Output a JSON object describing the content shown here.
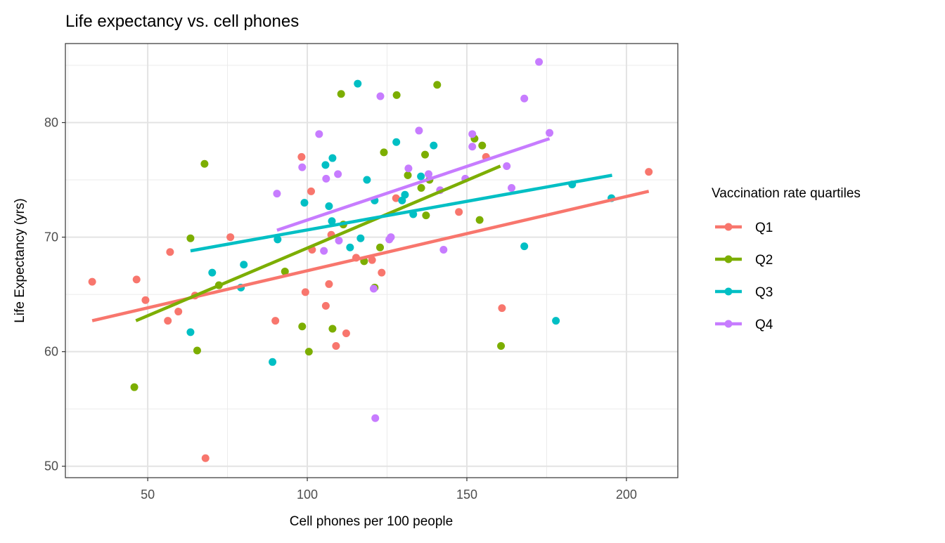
{
  "chart_data": {
    "type": "scatter",
    "title": "Life expectancy vs. cell phones",
    "xlabel": "Cell phones per 100 people",
    "ylabel": "Life Expectancy (yrs)",
    "xlim": [
      24.2,
      216.1
    ],
    "ylim": [
      49.0,
      86.9
    ],
    "xticks": [
      50,
      100,
      150,
      200
    ],
    "yticks": [
      50,
      60,
      70,
      80
    ],
    "xtick_labels": [
      "50",
      "100",
      "150",
      "200"
    ],
    "ytick_labels": [
      "50",
      "60",
      "70",
      "80"
    ],
    "grid": true,
    "legend": {
      "title": "Vaccination rate quartiles",
      "placement": "right"
    },
    "series": [
      {
        "name": "Q1",
        "color": "#F8766D",
        "points": [
          [
            32.6,
            66.1
          ],
          [
            46.5,
            66.3
          ],
          [
            49.3,
            64.5
          ],
          [
            56.3,
            62.7
          ],
          [
            59.6,
            63.5
          ],
          [
            57.0,
            68.7
          ],
          [
            64.8,
            64.9
          ],
          [
            75.9,
            70.0
          ],
          [
            68.1,
            50.7
          ],
          [
            90.0,
            62.7
          ],
          [
            98.2,
            77.0
          ],
          [
            99.4,
            65.2
          ],
          [
            101.2,
            74.0
          ],
          [
            101.5,
            68.9
          ],
          [
            105.8,
            64.0
          ],
          [
            106.8,
            65.9
          ],
          [
            107.5,
            70.2
          ],
          [
            109.0,
            60.5
          ],
          [
            112.2,
            61.6
          ],
          [
            115.3,
            68.2
          ],
          [
            120.3,
            68.0
          ],
          [
            123.3,
            66.9
          ],
          [
            127.8,
            73.4
          ],
          [
            147.5,
            72.2
          ],
          [
            156.0,
            77.0
          ],
          [
            161.0,
            63.8
          ],
          [
            207.0,
            75.7
          ]
        ],
        "fit": [
          [
            32.6,
            62.7
          ],
          [
            207.0,
            74.0
          ]
        ]
      },
      {
        "name": "Q2",
        "color": "#7CAE00",
        "points": [
          [
            45.8,
            56.9
          ],
          [
            67.8,
            76.4
          ],
          [
            63.4,
            69.9
          ],
          [
            65.5,
            60.1
          ],
          [
            72.3,
            65.8
          ],
          [
            93.0,
            67.0
          ],
          [
            98.4,
            62.2
          ],
          [
            100.5,
            60.0
          ],
          [
            107.9,
            62.0
          ],
          [
            110.6,
            82.5
          ],
          [
            111.3,
            71.1
          ],
          [
            117.8,
            67.9
          ],
          [
            121.1,
            65.6
          ],
          [
            122.8,
            69.1
          ],
          [
            124.0,
            77.4
          ],
          [
            128.0,
            82.4
          ],
          [
            131.5,
            75.4
          ],
          [
            135.7,
            74.3
          ],
          [
            136.9,
            77.2
          ],
          [
            137.2,
            71.9
          ],
          [
            138.3,
            75.0
          ],
          [
            140.7,
            83.3
          ],
          [
            152.4,
            78.6
          ],
          [
            154.8,
            78.0
          ],
          [
            154.0,
            71.5
          ],
          [
            160.7,
            60.5
          ]
        ],
        "fit": [
          [
            46.3,
            62.7
          ],
          [
            160.5,
            76.2
          ]
        ]
      },
      {
        "name": "Q3",
        "color": "#00BFC4",
        "points": [
          [
            63.4,
            61.7
          ],
          [
            70.2,
            66.9
          ],
          [
            79.2,
            65.6
          ],
          [
            80.1,
            67.6
          ],
          [
            89.1,
            59.1
          ],
          [
            90.7,
            69.8
          ],
          [
            99.1,
            73.0
          ],
          [
            105.7,
            76.3
          ],
          [
            106.8,
            72.7
          ],
          [
            107.9,
            76.9
          ],
          [
            107.7,
            71.4
          ],
          [
            113.4,
            69.1
          ],
          [
            115.8,
            83.4
          ],
          [
            116.7,
            69.9
          ],
          [
            118.7,
            75.0
          ],
          [
            121.1,
            73.2
          ],
          [
            127.9,
            78.3
          ],
          [
            129.7,
            73.2
          ],
          [
            130.6,
            73.7
          ],
          [
            133.2,
            72.0
          ],
          [
            135.6,
            75.3
          ],
          [
            139.6,
            78.0
          ],
          [
            168.0,
            69.2
          ],
          [
            177.9,
            62.7
          ],
          [
            183.0,
            74.6
          ],
          [
            195.3,
            73.4
          ]
        ],
        "fit": [
          [
            63.4,
            68.8
          ],
          [
            195.5,
            75.4
          ]
        ]
      },
      {
        "name": "Q4",
        "color": "#C77CFF",
        "points": [
          [
            90.5,
            73.8
          ],
          [
            98.4,
            76.1
          ],
          [
            103.7,
            79.0
          ],
          [
            105.2,
            68.8
          ],
          [
            105.9,
            75.1
          ],
          [
            109.6,
            75.5
          ],
          [
            109.9,
            69.7
          ],
          [
            121.3,
            54.2
          ],
          [
            122.9,
            82.3
          ],
          [
            125.7,
            69.8
          ],
          [
            126.2,
            70.0
          ],
          [
            131.7,
            76.0
          ],
          [
            135.0,
            79.3
          ],
          [
            138.0,
            75.5
          ],
          [
            141.6,
            74.1
          ],
          [
            142.7,
            68.9
          ],
          [
            149.5,
            75.1
          ],
          [
            151.7,
            79.0
          ],
          [
            151.7,
            77.9
          ],
          [
            162.5,
            76.2
          ],
          [
            164.0,
            74.3
          ],
          [
            168.0,
            82.1
          ],
          [
            172.6,
            85.3
          ],
          [
            175.9,
            79.1
          ],
          [
            120.8,
            65.5
          ]
        ],
        "fit": [
          [
            90.5,
            70.6
          ],
          [
            175.9,
            78.6
          ]
        ]
      }
    ]
  }
}
